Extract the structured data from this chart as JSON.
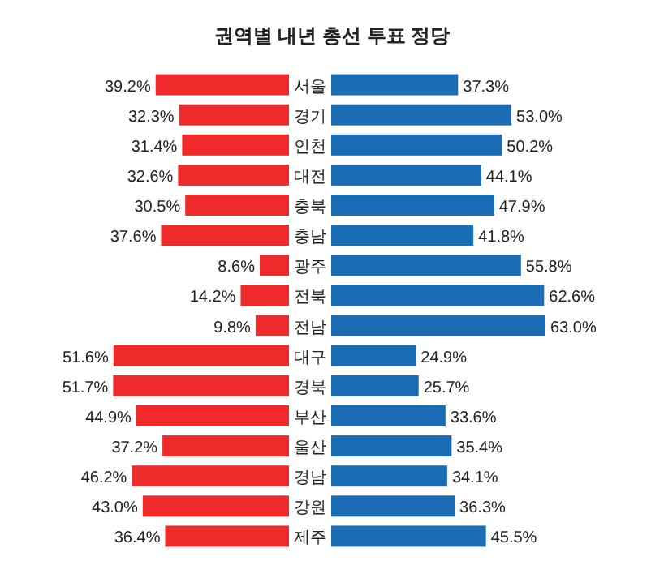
{
  "chart_data": [
    {
      "type": "bar",
      "orientation": "horizontal",
      "title": "권역별 내년 총선 투표 정당",
      "categories": [
        "서울",
        "경기",
        "인천",
        "대전",
        "충북",
        "충남",
        "광주",
        "전북",
        "전남",
        "대구",
        "경북",
        "부산",
        "울산",
        "경남",
        "강원",
        "제주"
      ],
      "series": [
        {
          "color": "#ee2a2a",
          "values": [
            39.2,
            32.3,
            31.4,
            32.6,
            30.5,
            37.6,
            8.6,
            14.2,
            9.8,
            51.6,
            51.7,
            44.9,
            37.2,
            46.2,
            43.0,
            36.4
          ],
          "value_labels": [
            "39.2%",
            "32.3%",
            "31.4%",
            "32.6%",
            "30.5%",
            "37.6%",
            "8.6%",
            "14.2%",
            "9.8%",
            "51.6%",
            "51.7%",
            "44.9%",
            "37.2%",
            "46.2%",
            "43.0%",
            "36.4%"
          ]
        }
      ]
    },
    {
      "type": "bar",
      "orientation": "horizontal",
      "categories": [
        null,
        null,
        null,
        null,
        null,
        null,
        null,
        null,
        null,
        null,
        null,
        null,
        null,
        null,
        null,
        null
      ],
      "series": [
        {
          "color": "#1a6db5",
          "values": [
            37.3,
            53.0,
            50.2,
            44.1,
            47.9,
            41.8,
            55.8,
            62.6,
            63.0,
            24.9,
            25.7,
            33.6,
            35.4,
            34.1,
            36.3,
            45.5
          ],
          "value_labels": [
            "37.3%",
            "53.0%",
            "50.2%",
            "44.1%",
            "47.9%",
            "41.8%",
            "55.8%",
            "62.6%",
            "63.0%",
            "24.9%",
            "25.7%",
            "33.6%",
            "35.4%",
            "34.1%",
            "36.3%",
            "45.5%"
          ]
        }
      ]
    }
  ]
}
